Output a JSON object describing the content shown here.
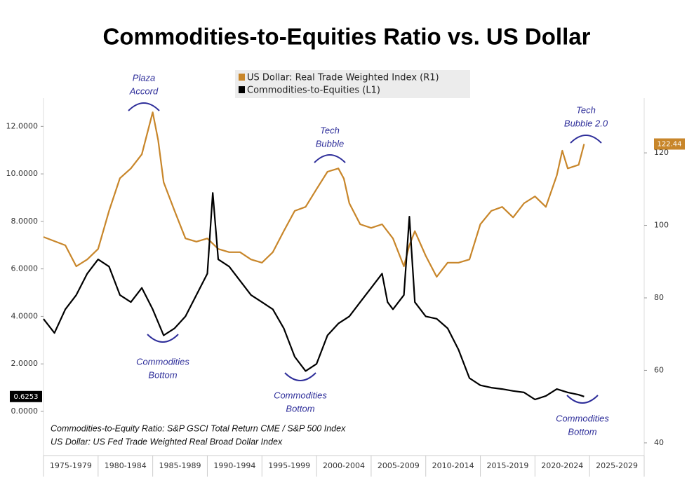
{
  "chart_data": {
    "type": "line",
    "title": "Commodities-to-Equities Ratio vs. US Dollar",
    "xlim": [
      1975,
      2030
    ],
    "xticks": [
      1975,
      1980,
      1985,
      1990,
      1995,
      2000,
      2005,
      2010,
      2015,
      2020,
      2025,
      2030
    ],
    "period_labels": [
      "1975-1979",
      "1980-1984",
      "1985-1989",
      "1990-1994",
      "1995-1999",
      "2000-2004",
      "2005-2009",
      "2010-2014",
      "2015-2019",
      "2020-2024",
      "2025-2029"
    ],
    "ylim": [
      -1.86,
      13.19
    ],
    "yticks": [
      {
        "value": 0,
        "label": "0.0000"
      },
      {
        "value": 2,
        "label": "2.0000"
      },
      {
        "value": 4,
        "label": "4.0000"
      },
      {
        "value": 6,
        "label": "6.0000"
      },
      {
        "value": 8,
        "label": "8.0000"
      },
      {
        "value": 10,
        "label": "10.0000"
      },
      {
        "value": 12,
        "label": "12.0000"
      }
    ],
    "y2lim": [
      36.5,
      135.1
    ],
    "y2ticks": [
      40,
      60,
      80,
      100,
      120
    ],
    "series": [
      {
        "name": "US Dollar: Real Trade Weighted Index (R1)",
        "color": "#c8862a",
        "axis": "y2",
        "end_label": "122.44",
        "x": [
          1975,
          1977,
          1978,
          1979,
          1980,
          1981,
          1982,
          1983,
          1984,
          1985,
          1985.5,
          1986,
          1987,
          1988,
          1989,
          1990,
          1991,
          1992,
          1993,
          1994,
          1995,
          1996,
          1997,
          1998,
          1999,
          2000,
          2001,
          2002,
          2002.5,
          2003,
          2004,
          2005,
          2006,
          2007,
          2008,
          2008.5,
          2009,
          2010,
          2011,
          2012,
          2013,
          2014,
          2015,
          2016,
          2017,
          2018,
          2019,
          2020,
          2021,
          2022,
          2022.5,
          2023,
          2024,
          2024.5
        ],
        "values": [
          96.8,
          94.5,
          88.7,
          90.6,
          93.5,
          104,
          113,
          115.7,
          119.6,
          131.2,
          123.5,
          111.9,
          104,
          96.4,
          95.5,
          96.4,
          93.5,
          92.6,
          92.6,
          90.6,
          89.7,
          92.6,
          98.4,
          104,
          105.1,
          110,
          114.8,
          115.7,
          112.9,
          106.1,
          100.3,
          99.3,
          100.3,
          96.4,
          88.7,
          94.5,
          98.4,
          91.6,
          85.8,
          89.7,
          89.7,
          90.6,
          100.3,
          104,
          105.1,
          102.2,
          106.1,
          108,
          105.1,
          113.8,
          120.6,
          115.7,
          116.7,
          122.44
        ]
      },
      {
        "name": "Commodities-to-Equities (L1)",
        "color": "#000000",
        "end_label": "0.6253",
        "x": [
          1975,
          1976,
          1977,
          1978,
          1979,
          1980,
          1981,
          1982,
          1983,
          1984,
          1985,
          1986,
          1987,
          1988,
          1989,
          1990,
          1990.5,
          1991,
          1992,
          1993,
          1994,
          1995,
          1996,
          1997,
          1998,
          1999,
          2000,
          2001,
          2002,
          2003,
          2004,
          2005,
          2006,
          2006.5,
          2007,
          2008,
          2008.5,
          2009,
          2010,
          2011,
          2012,
          2013,
          2014,
          2015,
          2016,
          2017,
          2018,
          2019,
          2020,
          2021,
          2022,
          2023,
          2024,
          2024.5
        ],
        "values": [
          3.89,
          3.3,
          4.3,
          4.9,
          5.8,
          6.4,
          6.1,
          4.9,
          4.6,
          5.2,
          4.3,
          3.2,
          3.5,
          4.0,
          4.9,
          5.8,
          9.2,
          6.4,
          6.1,
          5.5,
          4.9,
          4.6,
          4.3,
          3.5,
          2.3,
          1.7,
          2.0,
          3.2,
          3.7,
          4.0,
          4.6,
          5.2,
          5.8,
          4.6,
          4.3,
          4.9,
          8.2,
          4.6,
          4.0,
          3.9,
          3.5,
          2.6,
          1.4,
          1.1,
          1.0,
          0.94,
          0.86,
          0.8,
          0.5,
          0.65,
          0.94,
          0.8,
          0.7,
          0.6253
        ]
      }
    ],
    "annotations": [
      {
        "lines": [
          "Plaza",
          "Accord"
        ]
      },
      {
        "lines": [
          "Tech",
          "Bubble"
        ]
      },
      {
        "lines": [
          "Tech",
          "Bubble 2.0"
        ]
      },
      {
        "lines": [
          "Commodities",
          "Bottom"
        ]
      },
      {
        "lines": [
          "Commodities",
          "Bottom"
        ]
      },
      {
        "lines": [
          "Commodities",
          "Bottom"
        ]
      }
    ],
    "footnotes": [
      "Commodities-to-Equity Ratio: S&P GSCI Total Return CME / S&P 500 Index",
      "US Dollar: US Fed Trade Weighted Real Broad Dollar Index"
    ]
  }
}
